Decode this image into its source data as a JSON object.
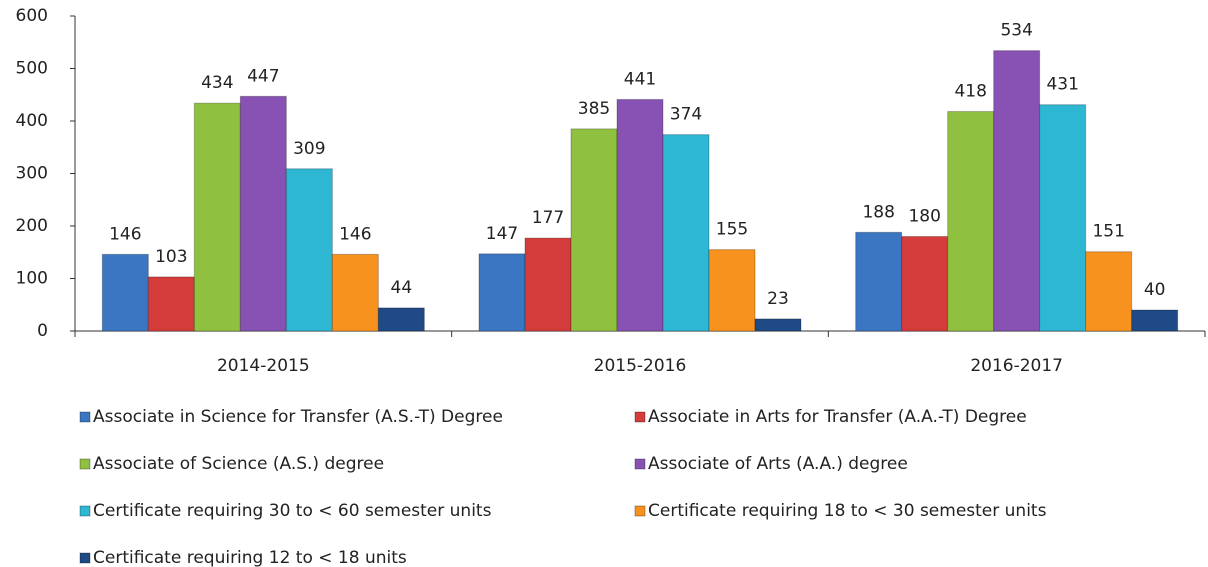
{
  "chart_data": {
    "type": "bar",
    "categories": [
      "2014-2015",
      "2015-2016",
      "2016-2017"
    ],
    "series": [
      {
        "name": "Associate in Science for Transfer (A.S.-T) Degree",
        "color": "#3b76c2",
        "values": [
          146,
          147,
          188
        ]
      },
      {
        "name": "Associate in Arts for Transfer (A.A.-T) Degree",
        "color": "#d43b3b",
        "values": [
          103,
          177,
          180
        ]
      },
      {
        "name": "Associate of Science (A.S.) degree",
        "color": "#8fc03f",
        "values": [
          434,
          385,
          418
        ]
      },
      {
        "name": "Associate of Arts (A.A.) degree",
        "color": "#8752b3",
        "values": [
          447,
          441,
          534
        ]
      },
      {
        "name": "Certificate requiring 30 to < 60 semester units",
        "color": "#2db7d3",
        "values": [
          309,
          374,
          431
        ]
      },
      {
        "name": "Certificate requiring 18 to < 30 semester units",
        "color": "#f7921e",
        "values": [
          146,
          155,
          151
        ]
      },
      {
        "name": "Certificate requiring 12 to < 18 units",
        "color": "#1f4a85",
        "values": [
          44,
          23,
          40
        ]
      }
    ],
    "ylim": [
      0,
      600
    ],
    "yticks": [
      0,
      100,
      200,
      300,
      400,
      500,
      600
    ],
    "grid": false,
    "legend": "bottom"
  }
}
